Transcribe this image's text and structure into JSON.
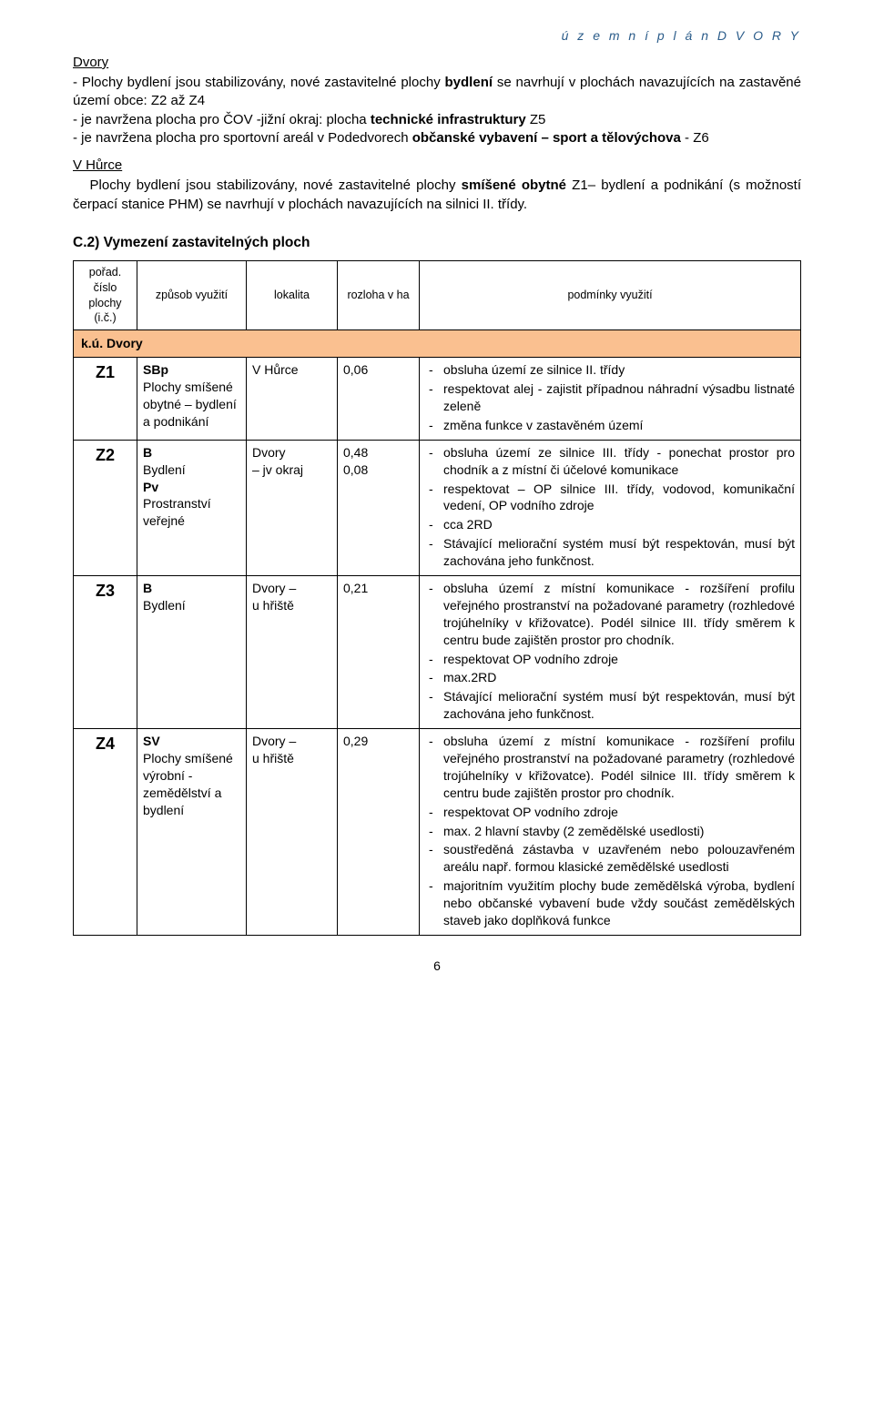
{
  "header": {
    "right": "ú z e m n í   p l á n   D V O R Y"
  },
  "sectionA": {
    "title": "Dvory"
  },
  "paraA": {
    "line1_prefix": "- Plochy bydlení jsou stabilizovány, nové zastavitelné plochy ",
    "line1_bold": "bydlení",
    "line1_suffix": " se navrhují v plochách navazujících na zastavěné území obce: Z2 až Z4",
    "line2": "- je navržena plocha pro ČOV -jižní okraj: plocha ",
    "line2_bold": "technické infrastruktury",
    "line2_suffix": " Z5",
    "line3_prefix": "- je navržena plocha pro sportovní areál v Podedvorech ",
    "line3_bold": "občanské vybavení – sport a tělovýchova",
    "line3_suffix": " - Z6"
  },
  "sectionB": {
    "title": "V Hůrce"
  },
  "paraB": {
    "text_prefix": "Plochy bydlení jsou stabilizovány, nové zastavitelné plochy ",
    "text_bold": "smíšené obytné",
    "text_suffix": " Z1– bydlení a podnikání (s možností čerpací stanice PHM) se navrhují v plochách navazujících na silnici II. třídy."
  },
  "c2": {
    "heading": "C.2) Vymezení zastavitelných ploch"
  },
  "table": {
    "headers": {
      "col1": "pořad. číslo plochy (i.č.)",
      "col2": "způsob využití",
      "col3": "lokalita",
      "col4": "rozloha v ha",
      "col5": "podmínky využití"
    },
    "group": "k.ú. Dvory",
    "rows": [
      {
        "id": "Z1",
        "use_html": "<span class='b'>SBp</span><br>Plochy smíšené obytné – bydlení a podnikání",
        "loc": "V Hůrce",
        "area": "0,06",
        "cond": [
          "obsluha území ze silnice II. třídy",
          "respektovat alej - zajistit případnou náhradní výsadbu listnaté zeleně",
          "změna funkce v zastavěném území"
        ]
      },
      {
        "id": "Z2",
        "use_html": "<span class='b'>B</span><br>Bydlení<br><span class='b'>Pv</span><br>Prostranství veřejné",
        "loc": "Dvory<br>– jv okraj",
        "area": "0,48<br>0,08",
        "cond": [
          "obsluha území ze silnice III. třídy - ponechat prostor pro chodník a z místní či účelové komunikace",
          "respektovat – OP silnice III. třídy, vodovod, komunikační vedení, OP vodního zdroje",
          "cca 2RD",
          "Stávající meliorační systém musí být respektován, musí být zachována jeho funkčnost."
        ]
      },
      {
        "id": "Z3",
        "use_html": "<span class='b'>B</span><br>Bydlení",
        "loc": "Dvory –<br>u hřiště",
        "area": "0,21",
        "cond": [
          "obsluha území z místní komunikace - rozšíření profilu veřejného prostranství na požadované parametry (rozhledové trojúhelníky v křižovatce). Podél silnice III. třídy směrem k centru bude zajištěn prostor pro chodník.",
          "respektovat OP vodního zdroje",
          "max.2RD",
          "Stávající meliorační systém musí být respektován, musí být zachována jeho funkčnost."
        ]
      },
      {
        "id": "Z4",
        "use_html": "<span class='b'>SV</span><br>Plochy smíšené výrobní - zemědělství a bydlení",
        "loc": "Dvory –<br>u hřiště",
        "area": "0,29",
        "cond": [
          "obsluha území z místní komunikace - rozšíření profilu veřejného prostranství na požadované parametry (rozhledové trojúhelníky v křižovatce). Podél silnice III. třídy směrem k centru bude zajištěn prostor pro chodník.",
          "respektovat OP vodního zdroje",
          "max. 2 hlavní stavby (2 zemědělské usedlosti)",
          "soustředěná zástavba v uzavřeném nebo polouzavřeném areálu např. formou klasické zemědělské usedlosti",
          "majoritním využitím plochy bude zemědělská výroba, bydlení nebo občanské vybavení bude vždy součást zemědělských staveb jako doplňková funkce"
        ]
      }
    ]
  },
  "footer": {
    "page": "6"
  },
  "colors": {
    "header_text": "#2b5c8a",
    "group_bg": "#fac090",
    "border": "#000000",
    "background": "#ffffff"
  }
}
